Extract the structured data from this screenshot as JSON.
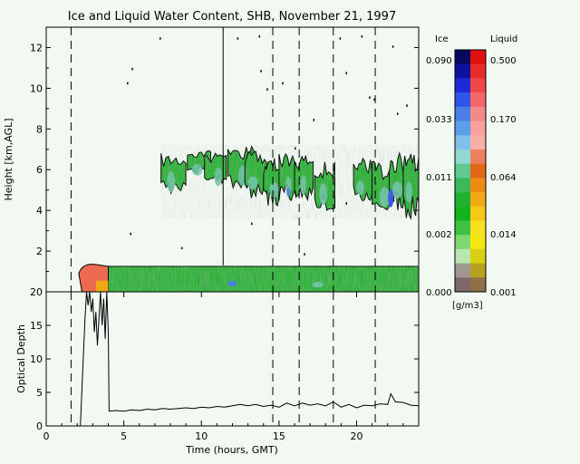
{
  "chart_data": [
    {
      "type": "heatmap",
      "title": "Ice and Liquid Water Content, SHB, November 21, 1997",
      "ylabel": "Height [km,AGL]",
      "xlim": [
        0,
        24
      ],
      "ylim": [
        0,
        13
      ],
      "yticks": [
        2,
        4,
        6,
        8,
        10,
        12
      ],
      "vertical_solid_line_x": [
        11.4
      ],
      "vertical_dashed_line_x": [
        1.6,
        14.6,
        16.3,
        18.5,
        21.2
      ],
      "upper_cloud_layer": {
        "x_range": [
          7.4,
          24
        ],
        "height_km": [
          3.8,
          7.2
        ]
      },
      "boundary_layer_cloud": {
        "x_range": [
          2.0,
          24
        ],
        "height_km": [
          0,
          1.3
        ]
      },
      "legend": {
        "ice_label": "Ice",
        "liquid_label": "Liquid",
        "ice_ticks": [
          "0.090",
          "0.033",
          "0.011",
          "0.002",
          "0.000"
        ],
        "liquid_ticks": [
          "0.500",
          "0.170",
          "0.064",
          "0.014",
          "0.001"
        ],
        "units": "[g/m3]",
        "ice_colors": [
          "#08085e",
          "#1010a0",
          "#1f2ad6",
          "#2f55e8",
          "#4a7fe8",
          "#5aa0e8",
          "#80c0e8",
          "#90d8d0",
          "#60c890",
          "#3cb85a",
          "#22b030",
          "#12b41e",
          "#40c040",
          "#80d870",
          "#b8e8b0",
          "#a09890",
          "#806868"
        ],
        "liquid_colors": [
          "#e01010",
          "#e82a2a",
          "#f04848",
          "#f26868",
          "#f58888",
          "#f8a0a0",
          "#f6b0a8",
          "#ec8060",
          "#e06818",
          "#ee8a10",
          "#f0a814",
          "#f5c818",
          "#f8e020",
          "#f0e810",
          "#d8d010",
          "#b8a020",
          "#907048"
        ]
      }
    },
    {
      "type": "line",
      "xlabel": "Time (hours, GMT)",
      "ylabel": "Optical Depth",
      "xlim": [
        0,
        24
      ],
      "ylim": [
        0,
        20
      ],
      "xticks": [
        0,
        5,
        10,
        15,
        20
      ],
      "yticks": [
        0,
        5,
        10,
        15,
        20
      ],
      "vertical_dashed_line_x": [
        1.6,
        14.6,
        16.3,
        18.5,
        21.2
      ],
      "series": [
        {
          "x": [
            2.2,
            2.35,
            2.5,
            2.6,
            2.7,
            2.8,
            2.9,
            3.0,
            3.1,
            3.2,
            3.3,
            3.4,
            3.5,
            3.6,
            3.7,
            3.8,
            3.9,
            4.0,
            4.05,
            4.5,
            5,
            5.5,
            6,
            6.5,
            7,
            7.5,
            8,
            8.5,
            9,
            9.5,
            10,
            10.5,
            11,
            11.5,
            12,
            12.5,
            13,
            13.5,
            14,
            14.5,
            15,
            15.5,
            16,
            16.5,
            17,
            17.5,
            18,
            18.5,
            19,
            19.5,
            20,
            20.5,
            21,
            21.5,
            22,
            22.2,
            22.5,
            23,
            23.5,
            24
          ],
          "y": [
            0,
            8,
            16,
            20,
            18,
            20,
            17,
            19,
            14,
            17,
            12,
            16,
            20,
            15,
            19,
            13,
            20,
            14,
            2.2,
            2.3,
            2.2,
            2.4,
            2.3,
            2.5,
            2.4,
            2.6,
            2.5,
            2.6,
            2.7,
            2.6,
            2.8,
            2.7,
            2.9,
            2.8,
            3.0,
            3.2,
            3.0,
            3.2,
            2.9,
            3.1,
            2.8,
            3.4,
            3.0,
            3.4,
            3.1,
            3.3,
            3.0,
            3.6,
            2.8,
            3.2,
            2.7,
            3.1,
            3.0,
            3.3,
            3.2,
            4.8,
            3.6,
            3.5,
            3.1,
            3.0
          ]
        }
      ]
    }
  ]
}
